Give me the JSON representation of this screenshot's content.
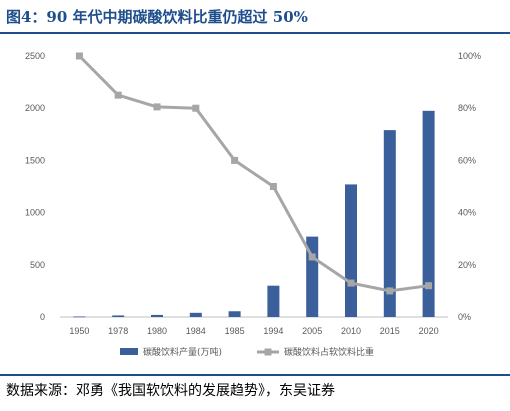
{
  "figure": {
    "title": "图4：90 年代中期碳酸饮料比重仍超过 50%",
    "source": "数据来源：邓勇《我国软饮料的发展趋势》，东吴证券"
  },
  "chart_data": {
    "type": "bar+line",
    "categories": [
      "1950",
      "1978",
      "1980",
      "1984",
      "1985",
      "1994",
      "2005",
      "2010",
      "2015",
      "2020"
    ],
    "series": [
      {
        "name": "碳酸饮料产量(万吨)",
        "type": "bar",
        "axis": "left",
        "color": "#3a5f9a",
        "values": [
          5,
          15,
          20,
          40,
          55,
          300,
          770,
          1270,
          1790,
          1975
        ]
      },
      {
        "name": "碳酸饮料占软饮料比重",
        "type": "line",
        "axis": "right",
        "color": "#a6a6a6",
        "values": [
          100,
          85,
          80.5,
          80,
          60,
          50,
          23,
          13,
          10,
          12
        ]
      }
    ],
    "left_axis": {
      "ylim": [
        0,
        2500
      ],
      "ticks": [
        "0",
        "500",
        "1000",
        "1500",
        "2000",
        "2500"
      ]
    },
    "right_axis": {
      "ylim": [
        0,
        100
      ],
      "ticks": [
        "0%",
        "20%",
        "40%",
        "60%",
        "80%",
        "100%"
      ]
    },
    "grid": false,
    "legend": "bottom"
  }
}
